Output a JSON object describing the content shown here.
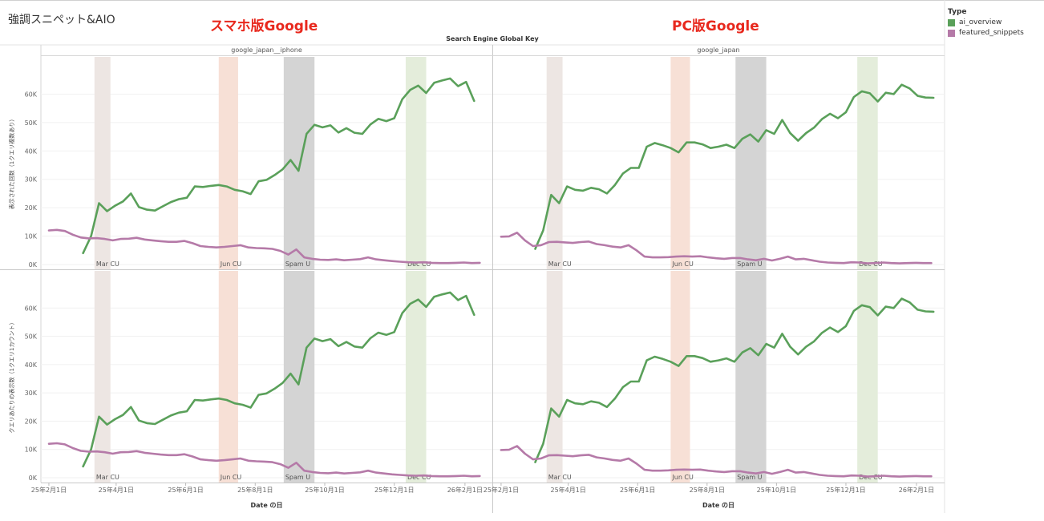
{
  "page": {
    "title": "強調スニペット&AIO",
    "annotation_mobile": "スマホ版Google",
    "annotation_pc": "PC版Google"
  },
  "legend": {
    "title": "Type",
    "items": [
      {
        "label": "ai_overview",
        "color": "#5aa05a"
      },
      {
        "label": "featured_snippets",
        "color": "#b57aa8"
      }
    ]
  },
  "chart_data": {
    "type": "line",
    "column_header_title": "Search Engine Global Key",
    "columns": [
      "google_japan__iphone",
      "google_japan"
    ],
    "row_axis_titles": [
      "表示された回数（1クエリ複数あり）",
      "クエリあたりの表示数（1クエリ1カウント）"
    ],
    "x_axis_title": "Date の日",
    "x_tick_labels": [
      "25年2月1日",
      "25年4月1日",
      "25年6月1日",
      "25年8月1日",
      "25年10月1日",
      "25年12月1日",
      "26年2月1日"
    ],
    "x_tick_dates": [
      "2025-02-01",
      "2025-04-01",
      "2025-06-01",
      "2025-08-01",
      "2025-10-01",
      "2025-12-01",
      "2026-02-01"
    ],
    "xlim": [
      "2025-01-25",
      "2026-02-25"
    ],
    "ylim": [
      0,
      70000
    ],
    "y_ticks": [
      0,
      10000,
      20000,
      30000,
      40000,
      50000,
      60000
    ],
    "y_tick_labels": [
      "0K",
      "10K",
      "20K",
      "30K",
      "40K",
      "50K",
      "60K"
    ],
    "bands": [
      {
        "label": "Mar CU",
        "start": "2025-03-13",
        "end": "2025-03-27",
        "color": "#ede6e3"
      },
      {
        "label": "Jun CU",
        "start": "2025-06-30",
        "end": "2025-07-17",
        "color": "#f7e0d6"
      },
      {
        "label": "Spam U",
        "start": "2025-08-26",
        "end": "2025-09-22",
        "color": "#d4d4d4"
      },
      {
        "label": "Dec CU",
        "start": "2025-12-11",
        "end": "2025-12-29",
        "color": "#e4eddb"
      }
    ],
    "series_colors": {
      "ai_overview": "#5aa05a",
      "featured_snippets": "#b57aa8"
    },
    "panels": [
      {
        "column": "google_japan__iphone",
        "series": [
          {
            "name": "ai_overview",
            "x": [
              "2025-03-03",
              "2025-03-10",
              "2025-03-17",
              "2025-03-24",
              "2025-03-31",
              "2025-04-07",
              "2025-04-14",
              "2025-04-21",
              "2025-04-28",
              "2025-05-05",
              "2025-05-12",
              "2025-05-19",
              "2025-05-26",
              "2025-06-02",
              "2025-06-09",
              "2025-06-16",
              "2025-06-23",
              "2025-06-30",
              "2025-07-07",
              "2025-07-14",
              "2025-07-21",
              "2025-07-28",
              "2025-08-04",
              "2025-08-11",
              "2025-08-18",
              "2025-08-25",
              "2025-09-01",
              "2025-09-08",
              "2025-09-15",
              "2025-09-22",
              "2025-09-29",
              "2025-10-06",
              "2025-10-13",
              "2025-10-20",
              "2025-10-27",
              "2025-11-03",
              "2025-11-10",
              "2025-11-17",
              "2025-11-24",
              "2025-12-01",
              "2025-12-08",
              "2025-12-15",
              "2025-12-22",
              "2025-12-29",
              "2026-01-05",
              "2026-01-12",
              "2026-01-19",
              "2026-01-26",
              "2026-02-02",
              "2026-02-09"
            ],
            "y": [
              4000,
              10000,
              21600,
              18800,
              20700,
              22200,
              25000,
              20200,
              19300,
              19000,
              20500,
              22000,
              23000,
              23500,
              27500,
              27300,
              27700,
              28000,
              27500,
              26300,
              25800,
              24800,
              29300,
              29800,
              31500,
              33500,
              36800,
              33000,
              46000,
              49200,
              48300,
              49000,
              46500,
              48000,
              46400,
              46000,
              49300,
              51300,
              50500,
              51500,
              58200,
              61500,
              63000,
              60400,
              64000,
              64800,
              65500,
              62800,
              64300,
              57600
            ]
          },
          {
            "name": "featured_snippets",
            "x": [
              "2025-02-01",
              "2025-02-08",
              "2025-02-15",
              "2025-02-22",
              "2025-03-01",
              "2025-03-08",
              "2025-03-15",
              "2025-03-22",
              "2025-03-29",
              "2025-04-05",
              "2025-04-12",
              "2025-04-19",
              "2025-04-26",
              "2025-05-03",
              "2025-05-10",
              "2025-05-17",
              "2025-05-24",
              "2025-05-31",
              "2025-06-07",
              "2025-06-14",
              "2025-06-21",
              "2025-06-28",
              "2025-07-05",
              "2025-07-12",
              "2025-07-19",
              "2025-07-26",
              "2025-08-02",
              "2025-08-09",
              "2025-08-16",
              "2025-08-23",
              "2025-08-30",
              "2025-09-06",
              "2025-09-13",
              "2025-09-20",
              "2025-09-27",
              "2025-10-04",
              "2025-10-11",
              "2025-10-18",
              "2025-10-25",
              "2025-11-01",
              "2025-11-08",
              "2025-11-15",
              "2025-11-22",
              "2025-11-29",
              "2025-12-06",
              "2025-12-13",
              "2025-12-20",
              "2025-12-27",
              "2026-01-03",
              "2026-01-10",
              "2026-01-17",
              "2026-01-24",
              "2026-01-31",
              "2026-02-07",
              "2026-02-14"
            ],
            "y": [
              12000,
              12200,
              11800,
              10500,
              9500,
              9200,
              9300,
              9000,
              8500,
              9000,
              9100,
              9400,
              8800,
              8500,
              8200,
              8000,
              8000,
              8300,
              7500,
              6500,
              6200,
              6000,
              6200,
              6500,
              6800,
              6000,
              5800,
              5700,
              5500,
              4800,
              3500,
              5300,
              2500,
              2000,
              1700,
              1600,
              1800,
              1500,
              1700,
              1900,
              2500,
              1800,
              1500,
              1200,
              1000,
              800,
              700,
              800,
              600,
              500,
              500,
              600,
              700,
              500,
              600
            ]
          }
        ]
      },
      {
        "column": "google_japan",
        "series": [
          {
            "name": "ai_overview",
            "x": [
              "2025-03-03",
              "2025-03-10",
              "2025-03-17",
              "2025-03-24",
              "2025-03-31",
              "2025-04-07",
              "2025-04-14",
              "2025-04-21",
              "2025-04-28",
              "2025-05-05",
              "2025-05-12",
              "2025-05-19",
              "2025-05-26",
              "2025-06-02",
              "2025-06-09",
              "2025-06-16",
              "2025-06-23",
              "2025-06-30",
              "2025-07-07",
              "2025-07-14",
              "2025-07-21",
              "2025-07-28",
              "2025-08-04",
              "2025-08-11",
              "2025-08-18",
              "2025-08-25",
              "2025-09-01",
              "2025-09-08",
              "2025-09-15",
              "2025-09-22",
              "2025-09-29",
              "2025-10-06",
              "2025-10-13",
              "2025-10-20",
              "2025-10-27",
              "2025-11-03",
              "2025-11-10",
              "2025-11-17",
              "2025-11-24",
              "2025-12-01",
              "2025-12-08",
              "2025-12-15",
              "2025-12-22",
              "2025-12-29",
              "2026-01-05",
              "2026-01-12",
              "2026-01-19",
              "2026-01-26",
              "2026-02-02",
              "2026-02-09",
              "2026-02-16"
            ],
            "y": [
              5500,
              12000,
              24500,
              21600,
              27500,
              26300,
              26000,
              27000,
              26500,
              25000,
              28000,
              32000,
              34000,
              34000,
              41500,
              42800,
              42000,
              41000,
              39500,
              43000,
              43000,
              42300,
              41000,
              41500,
              42200,
              41000,
              44300,
              45800,
              43300,
              47300,
              46000,
              50900,
              46300,
              43600,
              46300,
              48200,
              51200,
              53100,
              51500,
              53600,
              59000,
              61000,
              60300,
              57400,
              60500,
              60000,
              63300,
              62000,
              59400,
              58800,
              58700
            ]
          },
          {
            "name": "featured_snippets",
            "x": [
              "2025-02-01",
              "2025-02-08",
              "2025-02-15",
              "2025-02-22",
              "2025-03-01",
              "2025-03-08",
              "2025-03-15",
              "2025-03-22",
              "2025-03-29",
              "2025-04-05",
              "2025-04-12",
              "2025-04-19",
              "2025-04-26",
              "2025-05-03",
              "2025-05-10",
              "2025-05-17",
              "2025-05-24",
              "2025-05-31",
              "2025-06-07",
              "2025-06-14",
              "2025-06-21",
              "2025-06-28",
              "2025-07-05",
              "2025-07-12",
              "2025-07-19",
              "2025-07-26",
              "2025-08-02",
              "2025-08-09",
              "2025-08-16",
              "2025-08-23",
              "2025-08-30",
              "2025-09-06",
              "2025-09-13",
              "2025-09-20",
              "2025-09-27",
              "2025-10-04",
              "2025-10-11",
              "2025-10-18",
              "2025-10-25",
              "2025-11-01",
              "2025-11-08",
              "2025-11-15",
              "2025-11-22",
              "2025-11-29",
              "2025-12-06",
              "2025-12-13",
              "2025-12-20",
              "2025-12-27",
              "2026-01-03",
              "2026-01-10",
              "2026-01-17",
              "2026-01-24",
              "2026-01-31",
              "2026-02-07",
              "2026-02-14"
            ],
            "y": [
              9800,
              9900,
              11200,
              8500,
              6500,
              6800,
              7900,
              8000,
              7800,
              7600,
              7900,
              8100,
              7200,
              6800,
              6300,
              6000,
              6800,
              5000,
              2800,
              2500,
              2500,
              2600,
              2800,
              2900,
              2800,
              2900,
              2500,
              2200,
              2000,
              2300,
              2300,
              1800,
              1500,
              2000,
              1400,
              2000,
              2800,
              1800,
              2000,
              1500,
              1000,
              700,
              600,
              500,
              800,
              700,
              400,
              500,
              700,
              500,
              400,
              500,
              600,
              500,
              500
            ]
          }
        ]
      }
    ]
  }
}
